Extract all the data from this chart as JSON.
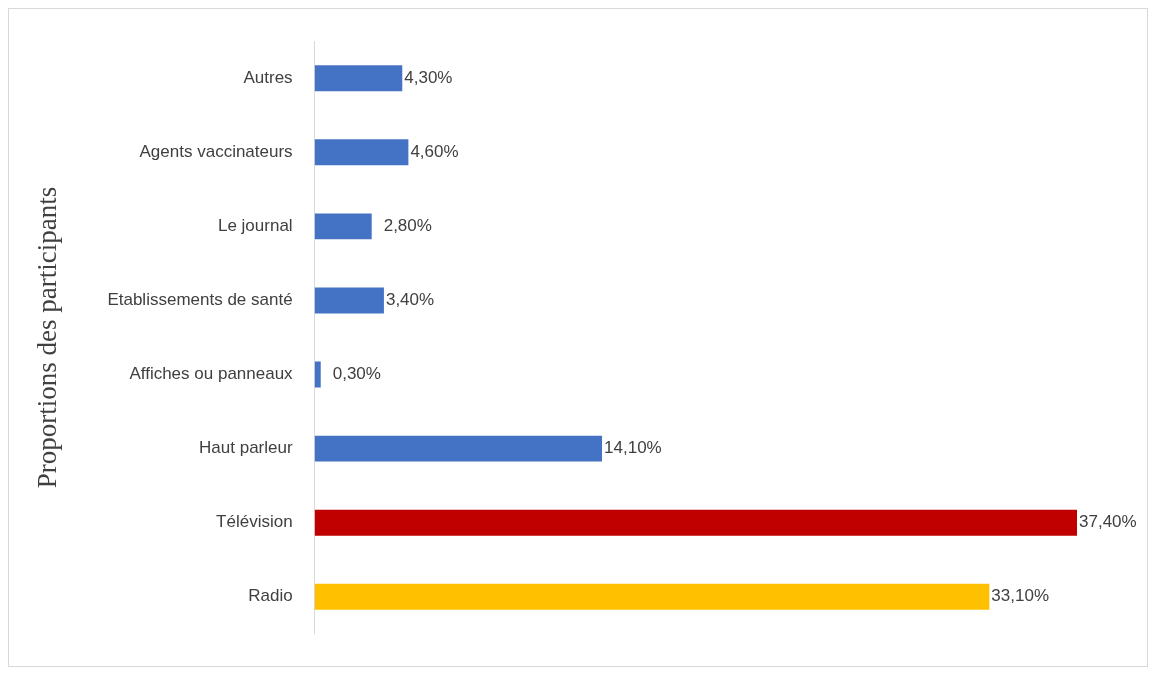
{
  "chart_data": {
    "type": "bar",
    "orientation": "horizontal",
    "ylabel": "Proportions des participants",
    "categories": [
      "Autres",
      "Agents vaccinateurs",
      "Le journal",
      "Etablissements de santé",
      "Affiches ou panneaux",
      "Haut parleur",
      "Télévision",
      "Radio"
    ],
    "values": [
      4.3,
      4.6,
      2.8,
      3.4,
      0.3,
      14.1,
      37.4,
      33.1
    ],
    "value_labels": [
      "4,30%",
      "4,60%",
      "2,80%",
      "3,40%",
      "0,30%",
      "14,10%",
      "37,40%",
      "33,10%"
    ],
    "colors": [
      "#4472c4",
      "#4472c4",
      "#4472c4",
      "#4472c4",
      "#4472c4",
      "#4472c4",
      "#c00000",
      "#ffc000"
    ],
    "legend": false,
    "grid": false
  }
}
